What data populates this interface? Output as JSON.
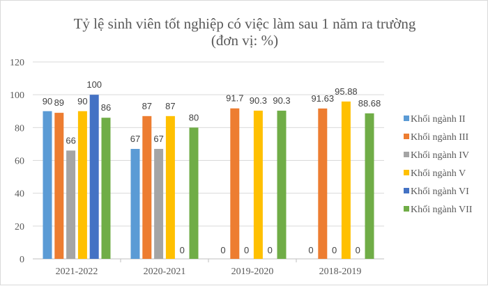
{
  "chart_data": {
    "type": "bar",
    "title": "Tỷ lệ sinh viên tốt nghiệp có việc làm sau 1 năm ra trường",
    "subtitle": "(đơn vị: %)",
    "categories": [
      "2021-2022",
      "2020-2021",
      "2019-2020",
      "2018-2019"
    ],
    "ylim": [
      0,
      120
    ],
    "yticks": [
      0,
      20,
      40,
      60,
      80,
      100,
      120
    ],
    "grid": true,
    "legend_position": "right",
    "series": [
      {
        "name": "Khối ngành II",
        "color": "#5b9bd5",
        "values": [
          90,
          67,
          0,
          0
        ]
      },
      {
        "name": "Khối ngành III",
        "color": "#ed7d31",
        "values": [
          89,
          87,
          91.7,
          91.63
        ]
      },
      {
        "name": "Khối ngành IV",
        "color": "#a5a5a5",
        "values": [
          66,
          67,
          0,
          0
        ]
      },
      {
        "name": "Khối ngành V",
        "color": "#ffc000",
        "values": [
          90,
          87,
          90.3,
          95.88
        ]
      },
      {
        "name": "Khối ngành VI",
        "color": "#4472c4",
        "values": [
          100,
          0,
          0,
          0
        ]
      },
      {
        "name": "Khối ngành VII",
        "color": "#70ad47",
        "values": [
          86,
          80,
          90.3,
          88.68
        ]
      }
    ]
  }
}
